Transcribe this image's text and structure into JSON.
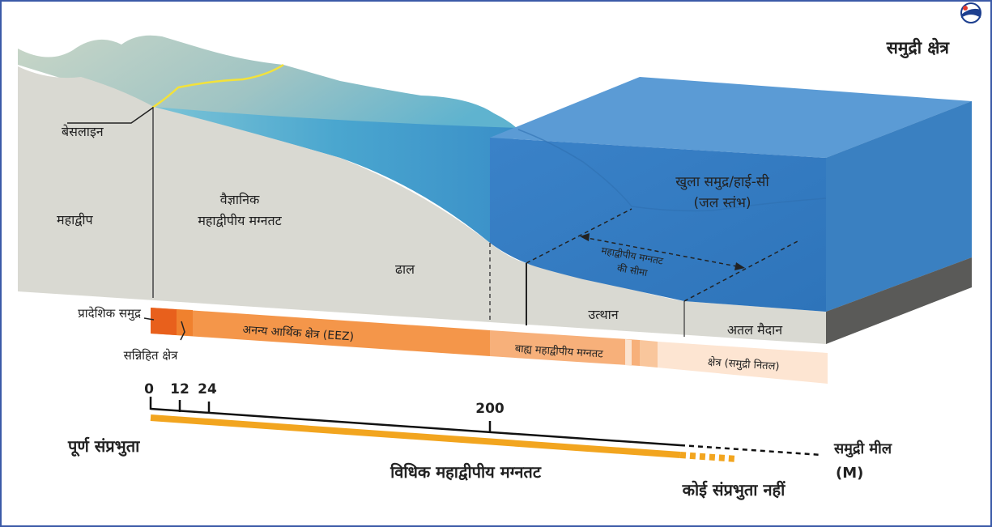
{
  "title": "समुद्री क्षेत्र",
  "labels": {
    "baseline": "बेसलाइन",
    "continent": "महाद्वीप",
    "scientific_shelf_line1": "वैज्ञानिक",
    "scientific_shelf_line2": "महाद्वीपीय मग्नतट",
    "slope": "ढाल",
    "open_sea_line1": "खुला समुद्र/हाई-सी",
    "open_sea_line2": "(जल स्तंभ)",
    "shelf_limit_line1": "महाद्वीपीय मग्नतट",
    "shelf_limit_line2": "की सीमा",
    "rise": "उत्थान",
    "abyssal_plain": "अतल मैदान",
    "territorial_sea": "प्रादेशिक समुद्र",
    "contiguous_zone": "सन्निहित क्षेत्र",
    "eez": "अनन्य आर्थिक क्षेत्र (EEZ)",
    "outer_shelf": "बाह्य महाद्वीपीय मग्नतट",
    "area": "क्षेत्र (समुद्री नितल)"
  },
  "scale": {
    "ticks": [
      "0",
      "12",
      "24",
      "200"
    ],
    "unit_line1": "समुद्री मील",
    "unit_line2": "(M)"
  },
  "legend": {
    "full_sovereignty": "पूर्ण संप्रभुता",
    "legal_shelf": "विधिक महाद्वीपीय मग्नतट",
    "no_sovereignty": "कोई संप्रभुता नहीं"
  },
  "colors": {
    "sovereignty": "#f2a51f",
    "legal_blue": "#2a6ea8",
    "eez_orange": "#f4964a",
    "territorial": "#e8601c",
    "ocean": "#3d7fc4",
    "land": "#d9d9d2"
  }
}
